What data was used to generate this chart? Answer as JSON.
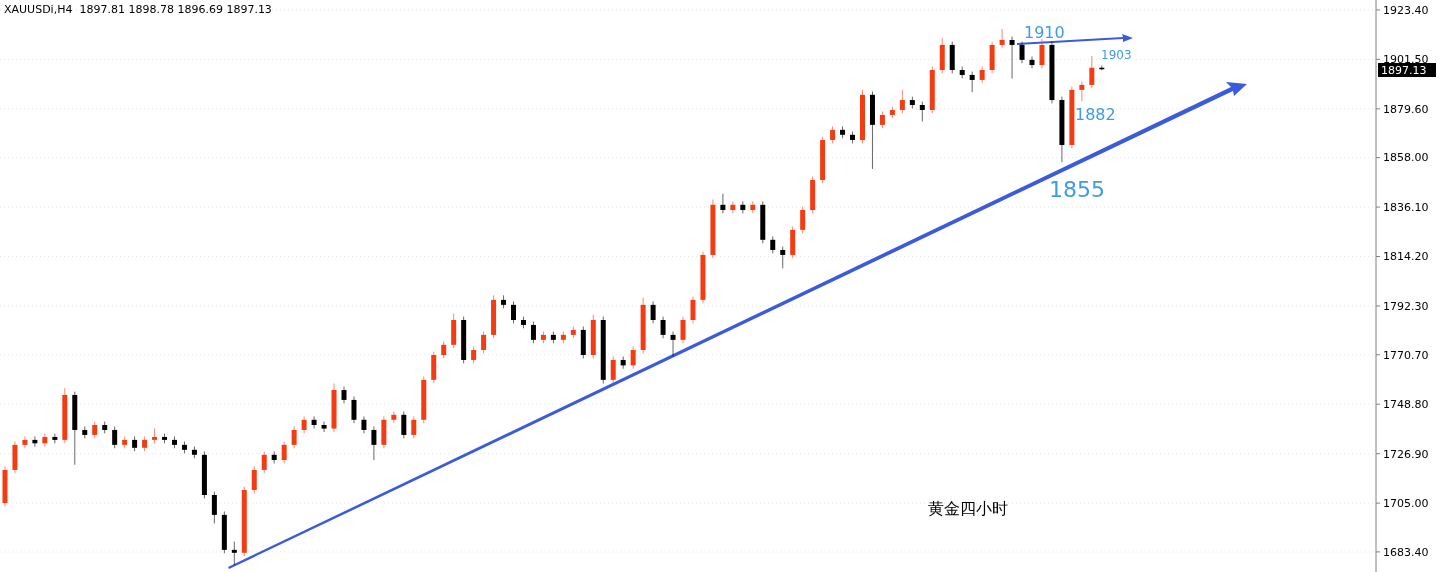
{
  "chart_data": {
    "type": "candlestick",
    "title": "XAUUSDi,H4  1897.81 1898.78 1896.69 1897.13",
    "categories": [
      null,
      null,
      null,
      null,
      null,
      null,
      null,
      null,
      null,
      null,
      null,
      null,
      null,
      null,
      null,
      null,
      null,
      null,
      null,
      null,
      null,
      null,
      null,
      null,
      null,
      null,
      null,
      null,
      null,
      null,
      null,
      null,
      null,
      null,
      null,
      null,
      null,
      null,
      null,
      null,
      null,
      null,
      null,
      null,
      null,
      null,
      null,
      null,
      null,
      null,
      null,
      null,
      null,
      null,
      null,
      null,
      null,
      null,
      null,
      null,
      null,
      null,
      null,
      null,
      null,
      null,
      null,
      null,
      null,
      null,
      null,
      null,
      null,
      null,
      null,
      null,
      null,
      null,
      null,
      null,
      null,
      null,
      null,
      null,
      null,
      null,
      null,
      null,
      null,
      null,
      null,
      null,
      null,
      null,
      null,
      null,
      null,
      null,
      null,
      null,
      null,
      null,
      null,
      null,
      null,
      null,
      null,
      null,
      null,
      null,
      null,
      null,
      null,
      null,
      null,
      null,
      null,
      null,
      null,
      null,
      null,
      null,
      null,
      null,
      null,
      null,
      null,
      null,
      null,
      null,
      null,
      null,
      null,
      null,
      null,
      null,
      null,
      null
    ],
    "ohlc": [
      [
        1705.0,
        1721.2,
        1703.5,
        1719.7
      ],
      [
        1719.7,
        1732.3,
        1718.2,
        1730.8
      ],
      [
        1730.8,
        1734.5,
        1729.3,
        1733.0
      ],
      [
        1733.0,
        1734.5,
        1730.0,
        1731.5
      ],
      [
        1731.5,
        1735.8,
        1730.0,
        1734.3
      ],
      [
        1734.3,
        1735.8,
        1731.5,
        1733.0
      ],
      [
        1733.0,
        1756.0,
        1731.5,
        1752.9
      ],
      [
        1752.9,
        1754.4,
        1722.0,
        1737.4
      ],
      [
        1737.4,
        1738.9,
        1733.7,
        1735.2
      ],
      [
        1735.2,
        1741.1,
        1733.7,
        1739.6
      ],
      [
        1739.6,
        1741.1,
        1735.9,
        1737.4
      ],
      [
        1737.4,
        1738.9,
        1729.3,
        1730.8
      ],
      [
        1730.8,
        1734.5,
        1729.3,
        1733.0
      ],
      [
        1733.0,
        1734.5,
        1728.0,
        1729.5
      ],
      [
        1729.5,
        1734.5,
        1728.0,
        1733.0
      ],
      [
        1733.0,
        1738.0,
        1731.5,
        1734.3
      ],
      [
        1734.3,
        1735.8,
        1731.5,
        1733.0
      ],
      [
        1733.0,
        1734.5,
        1729.3,
        1730.8
      ],
      [
        1730.8,
        1732.3,
        1727.1,
        1728.6
      ],
      [
        1728.6,
        1730.1,
        1724.9,
        1726.4
      ],
      [
        1726.4,
        1727.9,
        1707.1,
        1708.6
      ],
      [
        1708.6,
        1710.1,
        1696.0,
        1699.8
      ],
      [
        1699.8,
        1701.3,
        1682.8,
        1684.3
      ],
      [
        1684.3,
        1688.0,
        1677.6,
        1683.0
      ],
      [
        1683.0,
        1712.3,
        1681.5,
        1710.8
      ],
      [
        1710.8,
        1721.2,
        1709.3,
        1719.7
      ],
      [
        1719.7,
        1727.9,
        1718.2,
        1726.4
      ],
      [
        1726.4,
        1727.9,
        1722.6,
        1724.1
      ],
      [
        1724.1,
        1732.3,
        1722.6,
        1730.8
      ],
      [
        1730.8,
        1738.9,
        1729.3,
        1737.4
      ],
      [
        1737.4,
        1743.4,
        1735.9,
        1741.9
      ],
      [
        1741.9,
        1743.4,
        1738.1,
        1739.6
      ],
      [
        1739.6,
        1741.1,
        1736.5,
        1738.0
      ],
      [
        1738.0,
        1758.0,
        1736.5,
        1755.1
      ],
      [
        1755.1,
        1756.6,
        1749.2,
        1750.7
      ],
      [
        1750.7,
        1752.2,
        1740.4,
        1741.9
      ],
      [
        1741.9,
        1743.4,
        1735.9,
        1737.4
      ],
      [
        1737.4,
        1738.9,
        1724.0,
        1730.8
      ],
      [
        1730.8,
        1743.4,
        1729.3,
        1741.9
      ],
      [
        1741.9,
        1745.6,
        1740.4,
        1744.1
      ],
      [
        1744.1,
        1745.6,
        1733.7,
        1735.2
      ],
      [
        1735.2,
        1743.4,
        1733.7,
        1741.9
      ],
      [
        1741.9,
        1761.1,
        1740.4,
        1759.6
      ],
      [
        1759.6,
        1772.1,
        1758.1,
        1770.6
      ],
      [
        1770.6,
        1776.6,
        1769.1,
        1775.1
      ],
      [
        1775.1,
        1789.0,
        1773.6,
        1786.1
      ],
      [
        1786.1,
        1787.6,
        1766.9,
        1768.4
      ],
      [
        1768.4,
        1774.3,
        1766.9,
        1772.8
      ],
      [
        1772.8,
        1781.0,
        1771.3,
        1779.5
      ],
      [
        1779.5,
        1797.0,
        1778.0,
        1795.0
      ],
      [
        1795.0,
        1797.0,
        1791.3,
        1792.8
      ],
      [
        1792.8,
        1794.3,
        1784.6,
        1786.1
      ],
      [
        1786.1,
        1787.6,
        1782.4,
        1783.9
      ],
      [
        1783.9,
        1785.4,
        1775.8,
        1777.3
      ],
      [
        1777.3,
        1781.0,
        1775.8,
        1779.5
      ],
      [
        1779.5,
        1781.0,
        1775.8,
        1777.3
      ],
      [
        1777.3,
        1781.0,
        1775.8,
        1779.5
      ],
      [
        1779.5,
        1783.2,
        1778.0,
        1781.7
      ],
      [
        1781.7,
        1783.2,
        1769.1,
        1770.6
      ],
      [
        1770.6,
        1788.5,
        1769.1,
        1786.1
      ],
      [
        1786.1,
        1787.6,
        1758.0,
        1759.6
      ],
      [
        1759.6,
        1769.9,
        1758.1,
        1768.4
      ],
      [
        1768.4,
        1769.9,
        1764.5,
        1766.0
      ],
      [
        1766.0,
        1774.3,
        1764.5,
        1772.8
      ],
      [
        1772.8,
        1796.0,
        1771.3,
        1792.8
      ],
      [
        1792.8,
        1794.3,
        1784.6,
        1786.1
      ],
      [
        1786.1,
        1787.6,
        1778.0,
        1779.5
      ],
      [
        1779.5,
        1781.0,
        1770.0,
        1777.3
      ],
      [
        1777.3,
        1787.6,
        1775.8,
        1786.1
      ],
      [
        1786.1,
        1796.5,
        1784.6,
        1795.0
      ],
      [
        1795.0,
        1816.4,
        1793.5,
        1814.9
      ],
      [
        1814.9,
        1839.5,
        1813.4,
        1837.1
      ],
      [
        1837.1,
        1842.0,
        1833.3,
        1834.8
      ],
      [
        1834.8,
        1838.6,
        1833.3,
        1837.1
      ],
      [
        1837.1,
        1838.6,
        1833.3,
        1834.8
      ],
      [
        1834.8,
        1838.6,
        1833.3,
        1837.1
      ],
      [
        1837.1,
        1838.6,
        1820.1,
        1821.6
      ],
      [
        1821.6,
        1823.1,
        1815.6,
        1817.1
      ],
      [
        1817.1,
        1818.6,
        1809.0,
        1814.9
      ],
      [
        1814.9,
        1827.5,
        1813.4,
        1826.0
      ],
      [
        1826.0,
        1836.3,
        1824.5,
        1834.8
      ],
      [
        1834.8,
        1849.6,
        1833.3,
        1848.1
      ],
      [
        1848.1,
        1867.3,
        1846.6,
        1865.8
      ],
      [
        1865.8,
        1871.8,
        1864.3,
        1870.3
      ],
      [
        1870.3,
        1871.8,
        1866.6,
        1868.1
      ],
      [
        1868.1,
        1869.6,
        1864.3,
        1865.8
      ],
      [
        1865.8,
        1888.0,
        1864.3,
        1885.8
      ],
      [
        1885.8,
        1887.3,
        1853.0,
        1872.5
      ],
      [
        1872.5,
        1878.4,
        1871.0,
        1876.9
      ],
      [
        1876.9,
        1880.6,
        1875.4,
        1879.1
      ],
      [
        1879.1,
        1888.0,
        1877.6,
        1883.5
      ],
      [
        1883.5,
        1885.0,
        1879.8,
        1881.3
      ],
      [
        1881.3,
        1882.8,
        1874.0,
        1879.1
      ],
      [
        1879.1,
        1898.3,
        1877.6,
        1896.8
      ],
      [
        1896.8,
        1911.0,
        1895.3,
        1907.9
      ],
      [
        1907.9,
        1909.4,
        1895.3,
        1896.8
      ],
      [
        1896.8,
        1898.3,
        1893.1,
        1894.6
      ],
      [
        1894.6,
        1896.1,
        1887.0,
        1892.4
      ],
      [
        1892.4,
        1898.3,
        1890.9,
        1896.8
      ],
      [
        1896.8,
        1909.4,
        1895.3,
        1907.9
      ],
      [
        1907.9,
        1915.0,
        1906.4,
        1910.1
      ],
      [
        1910.1,
        1911.6,
        1893.0,
        1907.9
      ],
      [
        1907.9,
        1909.4,
        1899.8,
        1901.3
      ],
      [
        1901.3,
        1902.8,
        1897.5,
        1899.0
      ],
      [
        1899.0,
        1910.5,
        1897.5,
        1907.9
      ],
      [
        1907.9,
        1909.4,
        1882.0,
        1883.5
      ],
      [
        1883.5,
        1885.0,
        1856.0,
        1863.6
      ],
      [
        1863.6,
        1889.5,
        1862.1,
        1888.0
      ],
      [
        1888.0,
        1891.7,
        1883.0,
        1890.2
      ],
      [
        1890.2,
        1903.0,
        1888.7,
        1897.8
      ],
      [
        1897.81,
        1898.78,
        1896.69,
        1897.13
      ],
      null,
      null,
      null,
      null,
      null,
      null,
      null,
      null,
      null,
      null,
      null,
      null,
      null,
      null,
      null,
      null,
      null,
      null,
      null,
      null,
      null,
      null,
      null,
      null,
      null,
      null,
      null
    ],
    "colors": [
      "#f23d14",
      "#f23d14",
      "#f23d14",
      "#000000",
      "#f23d14",
      "#000000",
      "#f23d14",
      "#000000",
      "#000000",
      "#f23d14",
      "#000000",
      "#000000",
      "#f23d14",
      "#000000",
      "#f23d14",
      "#f23d14",
      "#000000",
      "#000000",
      "#000000",
      "#000000",
      "#000000",
      "#000000",
      "#000000",
      "#000000",
      "#f23d14",
      "#f23d14",
      "#f23d14",
      "#000000",
      "#f23d14",
      "#f23d14",
      "#f23d14",
      "#000000",
      "#000000",
      "#f23d14",
      "#000000",
      "#000000",
      "#000000",
      "#000000",
      "#f23d14",
      "#f23d14",
      "#000000",
      "#f23d14",
      "#f23d14",
      "#f23d14",
      "#f23d14",
      "#f23d14",
      "#000000",
      "#f23d14",
      "#f23d14",
      "#f23d14",
      "#000000",
      "#000000",
      "#000000",
      "#000000",
      "#f23d14",
      "#000000",
      "#f23d14",
      "#f23d14",
      "#000000",
      "#f23d14",
      "#000000",
      "#f23d14",
      "#000000",
      "#f23d14",
      "#f23d14",
      "#000000",
      "#000000",
      "#000000",
      "#f23d14",
      "#f23d14",
      "#f23d14",
      "#f23d14",
      "#000000",
      "#f23d14",
      "#000000",
      "#f23d14",
      "#000000",
      "#000000",
      "#000000",
      "#f23d14",
      "#f23d14",
      "#f23d14",
      "#f23d14",
      "#f23d14",
      "#000000",
      "#000000",
      "#f23d14",
      "#000000",
      "#f23d14",
      "#f23d14",
      "#f23d14",
      "#000000",
      "#000000",
      "#f23d14",
      "#f23d14",
      "#000000",
      "#000000",
      "#000000",
      "#f23d14",
      "#f23d14",
      "#f23d14",
      "#000000",
      "#000000",
      "#000000",
      "#f23d14",
      "#000000",
      "#000000",
      "#f23d14",
      "#f23d14",
      "#f23d14",
      "#000000",
      null,
      null,
      null,
      null,
      null,
      null,
      null,
      null,
      null,
      null,
      null,
      null,
      null,
      null,
      null,
      null,
      null,
      null,
      null,
      null,
      null,
      null,
      null,
      null,
      null,
      null,
      null
    ],
    "ylim": [
      1674.5,
      1927.8
    ],
    "yticks": [
      {
        "value": 1923.4,
        "label": "1923.40"
      },
      {
        "value": 1901.5,
        "label": "1901.50"
      },
      {
        "value": 1879.6,
        "label": "1879.60"
      },
      {
        "value": 1858.0,
        "label": "1858.00"
      },
      {
        "value": 1836.1,
        "label": "1836.10"
      },
      {
        "value": 1814.2,
        "label": "1814.20"
      },
      {
        "value": 1792.3,
        "label": "1792.30"
      },
      {
        "value": 1770.7,
        "label": "1770.70"
      },
      {
        "value": 1748.8,
        "label": "1748.80"
      },
      {
        "value": 1726.9,
        "label": "1726.90"
      },
      {
        "value": 1705.0,
        "label": "1705.00"
      },
      {
        "value": 1683.4,
        "label": "1683.40"
      }
    ],
    "tick_labels": "y",
    "grid": "y",
    "annotations": [
      "1910",
      "1903",
      "1882",
      "1855",
      "黄金四小时",
      "1897.13"
    ]
  }
}
